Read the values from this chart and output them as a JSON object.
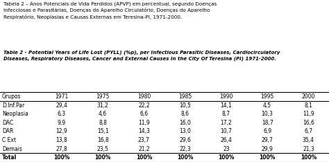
{
  "title_pt": "Tabela 2 – Anos Potenciais de Vida Perdidos (APVP) em percentual, segundo Doenças\nInfecciosas e Parasitárias, Doenças do Aparelho Circulatório, Doenças do Aparelho\nRespiratório, Neoplasias e Causas Externas em Teresina-PI, 1971-2000.",
  "title_en": "Table 2 - Potential Years of Life Lost (PYLL) (%p), per Infectious Parasitic Diseases, Cardiocirculatory\nDiseases, Respiratory Diseases, Cancer and External Causes In the City Of Teresina (PI) 1971-2000.",
  "columns": [
    "Grupos",
    "1971",
    "1975",
    "1980",
    "1985",
    "1990",
    "1995",
    "2000"
  ],
  "rows": [
    [
      "D.Inf.Par",
      "29,4",
      "31,2",
      "22,2",
      "10,5",
      "14,1",
      "4,5",
      "8,1"
    ],
    [
      "Neoplasia",
      "6,3",
      "4,6",
      "6,6",
      "8,6",
      "8,7",
      "10,3",
      "11,9"
    ],
    [
      "DAC",
      "9,9",
      "8,8",
      "11,9",
      "16,0",
      "17,2",
      "18,7",
      "16,6"
    ],
    [
      "DAR",
      "12,9",
      "15,1",
      "14,3",
      "13,0",
      "10,7",
      "6,9",
      "6,7"
    ],
    [
      "C Ext",
      "13,8",
      "16,8",
      "23,7",
      "29,6",
      "26,4",
      "29,7",
      "35,4"
    ],
    [
      "Demais",
      "27,8",
      "23,5",
      "21,2",
      "22,3",
      "23",
      "29,9",
      "21,3"
    ],
    [
      "Total",
      "100%",
      "100%",
      "100%",
      "100%",
      "100%",
      "100%",
      "100%"
    ]
  ],
  "bg_color": "#ffffff",
  "text_color": "#000000",
  "line_color": "#000000",
  "title_pt_fontsize": 5.2,
  "title_en_fontsize": 5.0,
  "table_fontsize": 5.5
}
